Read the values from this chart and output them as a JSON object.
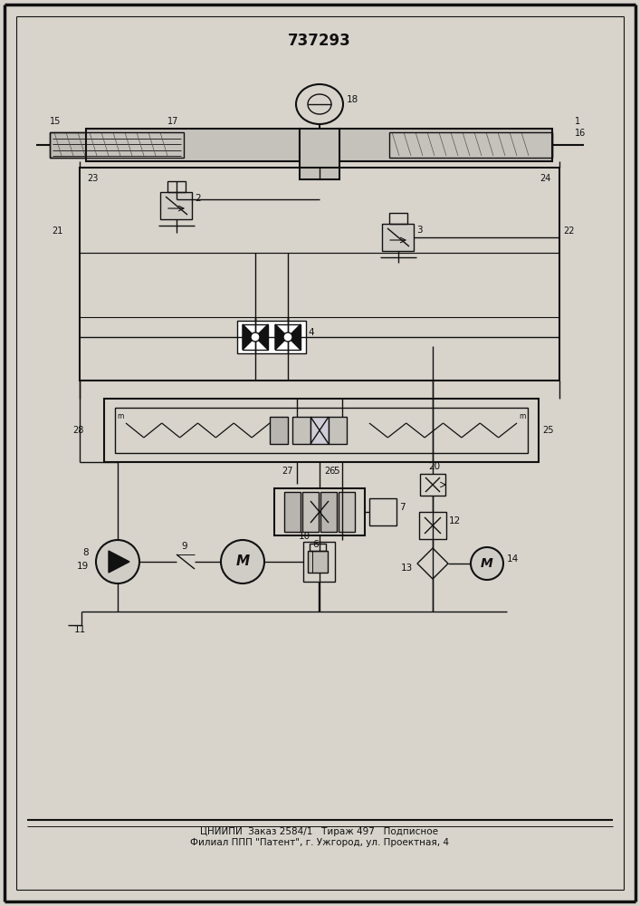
{
  "title": "737293",
  "bg_color": "#d8d4cc",
  "line_color": "#111111",
  "footer_line1": "ЦНИИПИ  Заказ 2584/1   Тираж 497   Подписное",
  "footer_line2": "Филиал ППП \"Патент\", г. Ужгород, ул. Проектная, 4",
  "footer_fontsize": 7.5,
  "title_fontsize": 12
}
